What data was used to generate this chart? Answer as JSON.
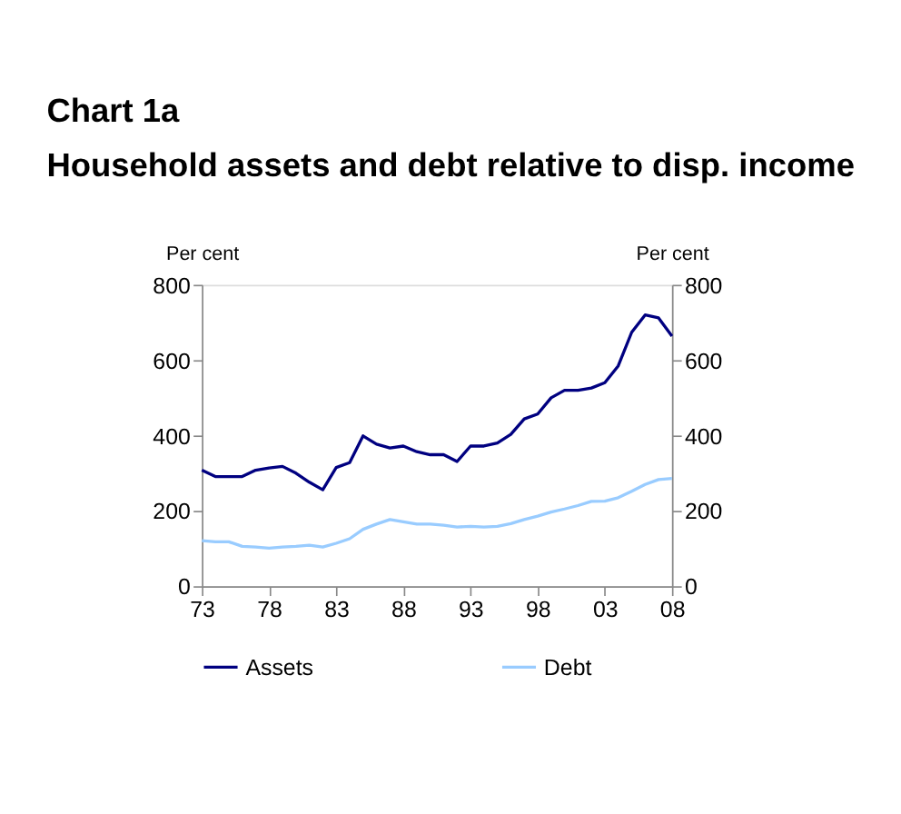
{
  "chart_data": {
    "type": "line",
    "title": "Chart 1a",
    "subtitle": "Household assets and debt relative to disp. income",
    "ylabel": "Per cent",
    "y2label": "Per cent",
    "x": [
      1973,
      1974,
      1975,
      1976,
      1977,
      1978,
      1979,
      1980,
      1981,
      1982,
      1983,
      1984,
      1985,
      1986,
      1987,
      1988,
      1989,
      1990,
      1991,
      1992,
      1993,
      1994,
      1995,
      1996,
      1997,
      1998,
      1999,
      2000,
      2001,
      2002,
      2003,
      2004,
      2005,
      2006,
      2007,
      2008
    ],
    "series": [
      {
        "name": "Assets",
        "color": "#000080",
        "values": [
          308,
          291,
          291,
          291,
          308,
          314,
          318,
          300,
          276,
          256,
          315,
          328,
          399,
          377,
          367,
          372,
          357,
          349,
          349,
          331,
          372,
          372,
          380,
          403,
          444,
          457,
          500,
          520,
          520,
          526,
          540,
          585,
          674,
          720,
          712,
          664
        ]
      },
      {
        "name": "Debt",
        "color": "#99ccff",
        "values": [
          121,
          118,
          118,
          106,
          104,
          101,
          104,
          106,
          109,
          104,
          114,
          126,
          151,
          165,
          177,
          171,
          165,
          165,
          162,
          157,
          159,
          157,
          159,
          166,
          177,
          186,
          197,
          205,
          214,
          225,
          226,
          235,
          252,
          270,
          283,
          286
        ]
      }
    ],
    "xlim": [
      1973,
      2008
    ],
    "xticks": [
      {
        "value": 1973,
        "label": "73"
      },
      {
        "value": 1978,
        "label": "78"
      },
      {
        "value": 1983,
        "label": "83"
      },
      {
        "value": 1988,
        "label": "88"
      },
      {
        "value": 1993,
        "label": "93"
      },
      {
        "value": 1998,
        "label": "98"
      },
      {
        "value": 2003,
        "label": "03"
      },
      {
        "value": 2008,
        "label": "08"
      }
    ],
    "ylim": [
      0,
      800
    ],
    "yticks": [
      0,
      200,
      400,
      600,
      800
    ],
    "y2lim": [
      0,
      800
    ],
    "y2ticks": [
      0,
      200,
      400,
      600,
      800
    ],
    "grid": false,
    "legend": "bottom",
    "marker": "none",
    "line_style": "solid"
  }
}
